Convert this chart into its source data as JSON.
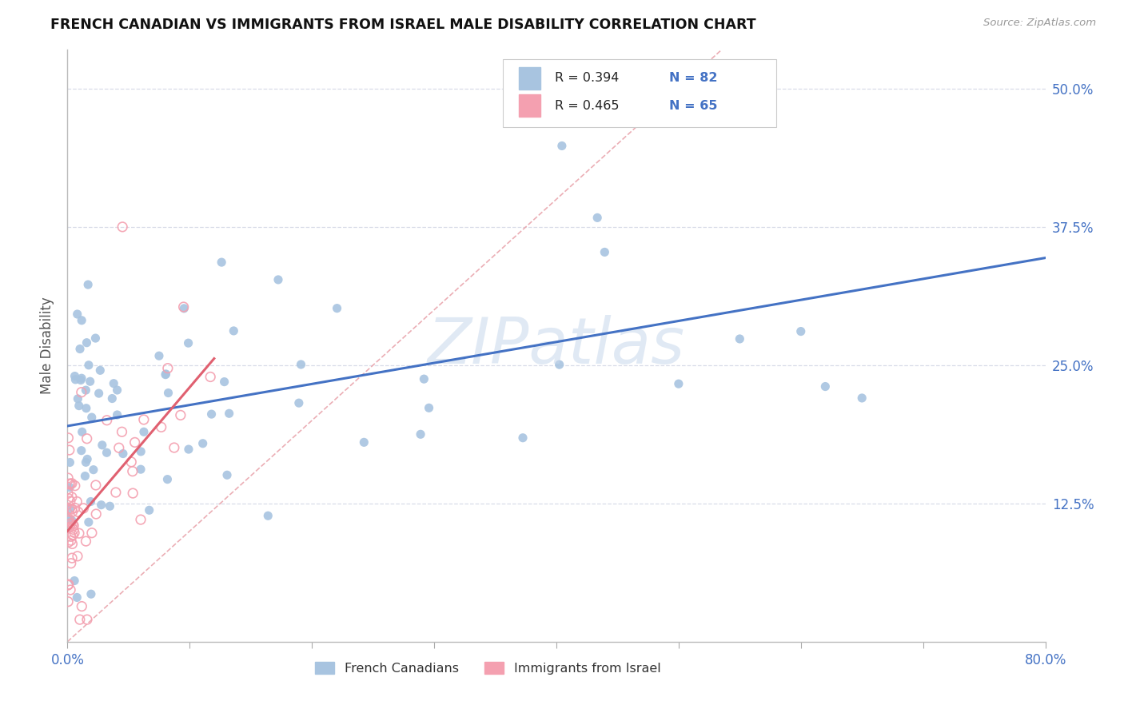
{
  "title": "FRENCH CANADIAN VS IMMIGRANTS FROM ISRAEL MALE DISABILITY CORRELATION CHART",
  "source": "Source: ZipAtlas.com",
  "ylabel": "Male Disability",
  "x_min": 0.0,
  "x_max": 0.8,
  "y_min": 0.0,
  "y_max": 0.535,
  "legend_r1": "R = 0.394",
  "legend_n1": "N = 82",
  "legend_r2": "R = 0.465",
  "legend_n2": "N = 65",
  "legend_label1": "French Canadians",
  "legend_label2": "Immigrants from Israel",
  "color_blue": "#a8c4e0",
  "color_pink": "#f4a0b0",
  "line_color_blue": "#4472c4",
  "line_color_pink": "#e06070",
  "diag_color": "#e8a0a8",
  "watermark_color": "#c8d8ec",
  "background_color": "#ffffff",
  "grid_color": "#d8dce8",
  "title_color": "#111111",
  "axis_label_color": "#4472c4",
  "ylabel_color": "#555555",
  "fc_intercept": 0.195,
  "fc_slope": 0.19,
  "isr_intercept": 0.1,
  "isr_slope": 1.3
}
